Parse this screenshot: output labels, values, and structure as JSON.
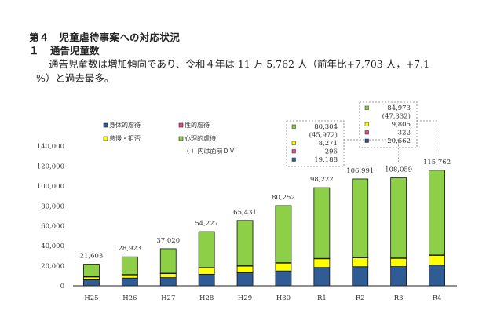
{
  "heading": {
    "section": "第４　児童虐待事案への対応状況",
    "sub_num": "１",
    "sub_title": "通告児童数",
    "para_line1": "通告児童数は増加傾向であり、令和４年は 11 万 5,762 人（前年比+7,703 人，+7.1",
    "para_line2": "%）と過去最多。"
  },
  "chart_data": {
    "type": "bar",
    "stacked": true,
    "title": "",
    "xlabel": "",
    "ylabel": "",
    "ylim": [
      0,
      140000
    ],
    "yticks": [
      0,
      20000,
      40000,
      60000,
      80000,
      100000,
      120000,
      140000
    ],
    "ytick_labels": [
      "0",
      "20,000",
      "40,000",
      "60,000",
      "80,000",
      "100,000",
      "120,000",
      "140,000"
    ],
    "categories": [
      "H25",
      "H26",
      "H27",
      "H28",
      "H29",
      "H30",
      "R1",
      "R2",
      "R3",
      "R4"
    ],
    "totals": [
      21603,
      28923,
      37020,
      54227,
      65431,
      80252,
      98222,
      106991,
      108059,
      115762
    ],
    "total_labels": [
      "21,603",
      "28,923",
      "37,020",
      "54,227",
      "65,431",
      "80,252",
      "98,222",
      "106,991",
      "108,059",
      "115,762"
    ],
    "series": [
      {
        "name": "身体的虐待",
        "color": "#2f5c95",
        "values": [
          6000,
          7700,
          8200,
          11500,
          13200,
          14800,
          18300,
          19100,
          19188,
          20662
        ]
      },
      {
        "name": "怠慢・拒否",
        "color": "#ffff00",
        "values": [
          3000,
          3400,
          4200,
          6500,
          6600,
          8000,
          8800,
          9000,
          8271,
          9805
        ]
      },
      {
        "name": "性的虐待",
        "color": "#e0507a",
        "values": [
          150,
          180,
          170,
          230,
          240,
          270,
          260,
          300,
          296,
          322
        ]
      },
      {
        "name": "心理的虐待",
        "color": "#8dcf47",
        "values": [
          12453,
          17643,
          24450,
          35997,
          45391,
          57182,
          70862,
          78591,
          80304,
          84973
        ]
      }
    ],
    "legend": {
      "position": "top-left",
      "items": [
        {
          "name": "身体的虐待",
          "color": "#2f5c95"
        },
        {
          "name": "性的虐待",
          "color": "#e0507a"
        },
        {
          "name": "怠慢・拒否",
          "color": "#ffff00"
        },
        {
          "name": "心理的虐待",
          "color": "#8dcf47"
        }
      ],
      "note": "（ ）内は面前ＤＶ"
    },
    "callouts": [
      {
        "category": "R3",
        "rows": [
          {
            "color": "#8dcf47",
            "text": "80,304"
          },
          {
            "color": "",
            "text": "(45,972)"
          },
          {
            "color": "#ffff00",
            "text": "8,271"
          },
          {
            "color": "#e0507a",
            "text": "296"
          },
          {
            "color": "#2f5c95",
            "text": "19,188"
          }
        ]
      },
      {
        "category": "R4",
        "rows": [
          {
            "color": "#8dcf47",
            "text": "84,973"
          },
          {
            "color": "",
            "text": "(47,332)"
          },
          {
            "color": "#ffff00",
            "text": "9,805"
          },
          {
            "color": "#e0507a",
            "text": "322"
          },
          {
            "color": "#2f5c95",
            "text": "20,662"
          }
        ]
      }
    ]
  }
}
